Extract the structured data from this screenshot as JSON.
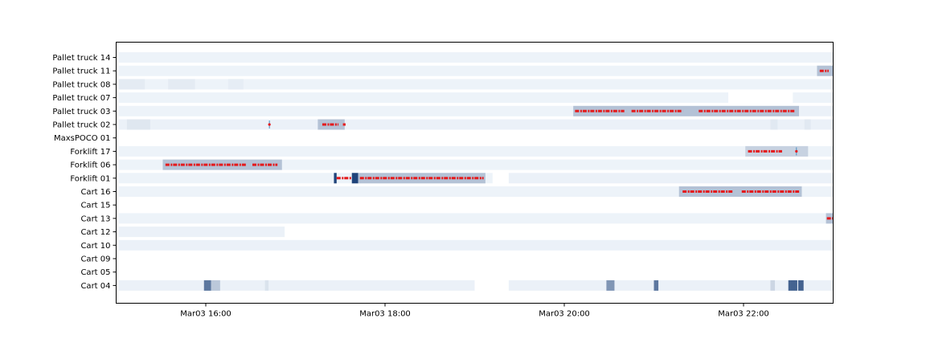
{
  "chart_data": {
    "type": "heatmap",
    "title": "",
    "xlabel": "",
    "ylabel": "",
    "grid": false,
    "x_range_hours": [
      15.0,
      23.0
    ],
    "x_ticks": [
      {
        "label": "Mar03 16:00",
        "value": 16
      },
      {
        "label": "Mar03 18:00",
        "value": 18
      },
      {
        "label": "Mar03 20:00",
        "value": 20
      },
      {
        "label": "Mar03 22:00",
        "value": 22
      }
    ],
    "rows": [
      {
        "name": "Pallet truck 14",
        "bands": [
          {
            "start": 15.03,
            "end": 23.0,
            "level": 0.04
          }
        ],
        "events": []
      },
      {
        "name": "Pallet truck 11",
        "bands": [
          {
            "start": 15.03,
            "end": 22.82,
            "level": 0.04
          },
          {
            "start": 22.82,
            "end": 23.0,
            "level": 0.28
          }
        ],
        "events": [
          {
            "start": 22.85,
            "end": 22.95
          }
        ]
      },
      {
        "name": "Pallet truck 08",
        "bands": [
          {
            "start": 15.03,
            "end": 23.0,
            "level": 0.04
          },
          {
            "start": 15.03,
            "end": 15.32,
            "level": 0.08
          },
          {
            "start": 15.58,
            "end": 15.88,
            "level": 0.08
          },
          {
            "start": 16.25,
            "end": 16.42,
            "level": 0.07
          }
        ],
        "events": []
      },
      {
        "name": "Pallet truck 07",
        "bands": [
          {
            "start": 15.03,
            "end": 21.83,
            "level": 0.04
          },
          {
            "start": 22.55,
            "end": 23.0,
            "level": 0.04
          }
        ],
        "events": []
      },
      {
        "name": "Pallet truck 03",
        "bands": [
          {
            "start": 15.03,
            "end": 20.1,
            "level": 0.04
          },
          {
            "start": 20.1,
            "end": 22.62,
            "level": 0.28
          },
          {
            "start": 22.62,
            "end": 23.0,
            "level": 0.05
          }
        ],
        "events": [
          {
            "start": 20.12,
            "end": 20.67
          },
          {
            "start": 20.75,
            "end": 21.32
          },
          {
            "start": 21.5,
            "end": 22.58
          }
        ]
      },
      {
        "name": "Pallet truck 02",
        "bands": [
          {
            "start": 15.03,
            "end": 23.0,
            "level": 0.05
          },
          {
            "start": 15.12,
            "end": 15.38,
            "level": 0.1
          },
          {
            "start": 17.25,
            "end": 17.55,
            "level": 0.28
          },
          {
            "start": 22.3,
            "end": 22.38,
            "level": 0.09
          },
          {
            "start": 22.68,
            "end": 22.75,
            "level": 0.09
          }
        ],
        "events": [
          {
            "start": 16.7,
            "end": 16.72
          },
          {
            "start": 17.3,
            "end": 17.48
          },
          {
            "start": 17.53,
            "end": 17.56
          }
        ]
      },
      {
        "name": "MaxsPOCO 01",
        "bands": [],
        "events": []
      },
      {
        "name": "Forklift 17",
        "bands": [
          {
            "start": 15.03,
            "end": 23.0,
            "level": 0.04
          },
          {
            "start": 22.02,
            "end": 22.72,
            "level": 0.2
          }
        ],
        "events": [
          {
            "start": 22.05,
            "end": 22.43
          },
          {
            "start": 22.58,
            "end": 22.6
          }
        ]
      },
      {
        "name": "Forklift 06",
        "bands": [
          {
            "start": 15.03,
            "end": 23.0,
            "level": 0.04
          },
          {
            "start": 15.52,
            "end": 16.85,
            "level": 0.28
          }
        ],
        "events": [
          {
            "start": 15.55,
            "end": 16.45
          },
          {
            "start": 16.52,
            "end": 16.8
          }
        ]
      },
      {
        "name": "Forklift 01",
        "bands": [
          {
            "start": 15.03,
            "end": 19.2,
            "level": 0.04
          },
          {
            "start": 17.43,
            "end": 17.46,
            "level": 0.9
          },
          {
            "start": 17.63,
            "end": 17.7,
            "level": 0.9
          },
          {
            "start": 17.7,
            "end": 19.12,
            "level": 0.28
          },
          {
            "start": 19.38,
            "end": 23.0,
            "level": 0.05
          }
        ],
        "events": [
          {
            "start": 17.46,
            "end": 17.63
          },
          {
            "start": 17.72,
            "end": 19.1
          }
        ]
      },
      {
        "name": "Cart 16",
        "bands": [
          {
            "start": 15.03,
            "end": 23.0,
            "level": 0.04
          },
          {
            "start": 21.28,
            "end": 22.65,
            "level": 0.28
          }
        ],
        "events": [
          {
            "start": 21.32,
            "end": 21.88
          },
          {
            "start": 21.98,
            "end": 22.62
          }
        ]
      },
      {
        "name": "Cart 15",
        "bands": [],
        "events": []
      },
      {
        "name": "Cart 13",
        "bands": [
          {
            "start": 15.03,
            "end": 22.92,
            "level": 0.04
          },
          {
            "start": 22.92,
            "end": 23.0,
            "level": 0.28
          }
        ],
        "events": [
          {
            "start": 22.93,
            "end": 23.0
          }
        ]
      },
      {
        "name": "Cart 12",
        "bands": [
          {
            "start": 15.03,
            "end": 16.88,
            "level": 0.05
          }
        ],
        "events": []
      },
      {
        "name": "Cart 10",
        "bands": [
          {
            "start": 15.03,
            "end": 23.0,
            "level": 0.05
          }
        ],
        "events": []
      },
      {
        "name": "Cart 09",
        "bands": [],
        "events": []
      },
      {
        "name": "Cart 05",
        "bands": [],
        "events": []
      },
      {
        "name": "Cart 04",
        "bands": [
          {
            "start": 15.03,
            "end": 19.0,
            "level": 0.05
          },
          {
            "start": 19.38,
            "end": 23.0,
            "level": 0.05
          },
          {
            "start": 15.98,
            "end": 16.06,
            "level": 0.65
          },
          {
            "start": 16.06,
            "end": 16.16,
            "level": 0.25
          },
          {
            "start": 16.66,
            "end": 16.7,
            "level": 0.12
          },
          {
            "start": 20.47,
            "end": 20.56,
            "level": 0.5
          },
          {
            "start": 21.0,
            "end": 21.05,
            "level": 0.65
          },
          {
            "start": 22.3,
            "end": 22.35,
            "level": 0.18
          },
          {
            "start": 22.5,
            "end": 22.6,
            "level": 0.75
          },
          {
            "start": 22.61,
            "end": 22.67,
            "level": 0.75
          }
        ],
        "events": []
      }
    ],
    "colors": {
      "event": "#e41a1c",
      "band_light": "#f7fbff",
      "band_dark": "#08306b",
      "axes": "#000000"
    }
  }
}
